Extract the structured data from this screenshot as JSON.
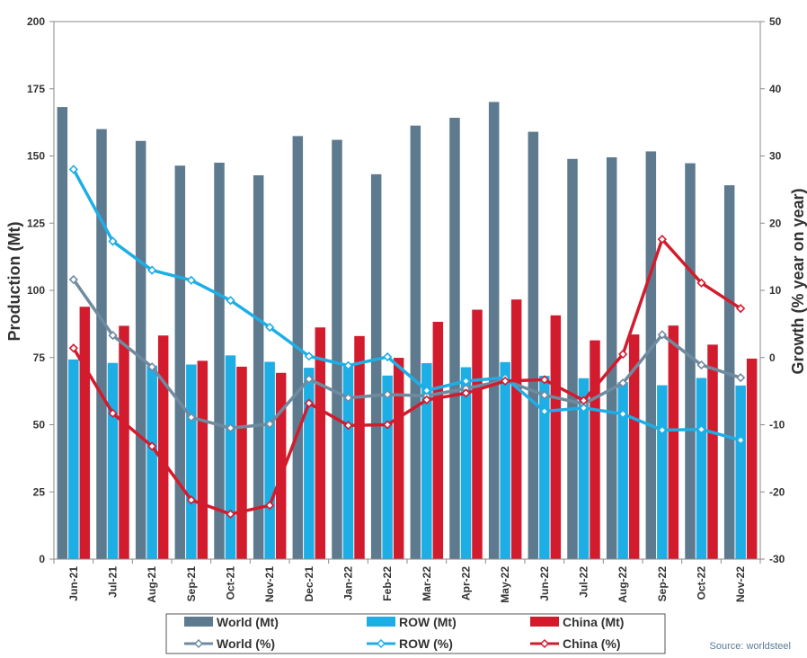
{
  "chart_data": {
    "type": "bar",
    "categories": [
      "Jun-21",
      "Jul-21",
      "Aug-21",
      "Sep-21",
      "Oct-21",
      "Nov-21",
      "Dec-21",
      "Jan-22",
      "Feb-22",
      "Mar-22",
      "Apr-22",
      "May-22",
      "Jun-22",
      "Jul-22",
      "Aug-22",
      "Sep-22",
      "Oct-22",
      "Nov-22"
    ],
    "ylabel": "Production (Mt)",
    "y2label": "Growth (% year on year)",
    "ylim": [
      0,
      200
    ],
    "yticks": [
      0,
      25,
      50,
      75,
      100,
      125,
      150,
      175,
      200
    ],
    "y2lim": [
      -30,
      50
    ],
    "y2ticks": [
      -30,
      -20,
      -10,
      0,
      10,
      20,
      30,
      40,
      50
    ],
    "grid": false,
    "legend_position": "bottom",
    "series": [
      {
        "name": "World (Mt)",
        "kind": "bar",
        "axis": "left",
        "color": "#5d7a8f",
        "values": [
          168.2,
          160.0,
          155.6,
          146.4,
          147.5,
          142.8,
          157.4,
          156.0,
          143.2,
          161.3,
          164.2,
          170.1,
          159.0,
          148.9,
          149.5,
          151.7,
          147.3,
          139.1
        ]
      },
      {
        "name": "ROW (Mt)",
        "kind": "bar",
        "axis": "left",
        "color": "#1eaee6",
        "values": [
          74.3,
          73.0,
          72.0,
          72.4,
          75.8,
          73.4,
          71.2,
          72.7,
          68.3,
          72.9,
          71.4,
          73.3,
          68.2,
          67.3,
          65.8,
          64.7,
          67.4,
          64.6
        ]
      },
      {
        "name": "China (Mt)",
        "kind": "bar",
        "axis": "left",
        "color": "#d21c2e",
        "values": [
          93.9,
          86.8,
          83.2,
          73.8,
          71.6,
          69.3,
          86.2,
          83.0,
          74.9,
          88.3,
          92.8,
          96.6,
          90.7,
          81.4,
          83.6,
          86.9,
          79.8,
          74.6
        ]
      },
      {
        "name": "World (%)",
        "kind": "line",
        "axis": "right",
        "color": "#6f8ba0",
        "values": [
          11.6,
          3.3,
          -1.4,
          -8.9,
          -10.5,
          -9.9,
          -3.2,
          -6.0,
          -5.5,
          -5.7,
          -4.6,
          -3.4,
          -5.6,
          -6.9,
          -3.8,
          3.4,
          -1.1,
          -3.0
        ]
      },
      {
        "name": "ROW (%)",
        "kind": "line",
        "axis": "right",
        "color": "#1eaee6",
        "values": [
          28.0,
          17.3,
          13.0,
          11.5,
          8.5,
          4.5,
          0.2,
          -1.2,
          0.1,
          -4.9,
          -3.5,
          -3.0,
          -8.0,
          -7.5,
          -8.4,
          -10.8,
          -10.7,
          -12.3
        ]
      },
      {
        "name": "China (%)",
        "kind": "line",
        "axis": "right",
        "color": "#d21c2e",
        "values": [
          1.4,
          -8.3,
          -13.2,
          -21.2,
          -23.3,
          -22.0,
          -6.8,
          -10.1,
          -10.0,
          -6.3,
          -5.3,
          -3.5,
          -3.3,
          -6.4,
          0.5,
          17.6,
          11.1,
          7.3
        ]
      }
    ]
  },
  "source": "Source: worldsteel"
}
